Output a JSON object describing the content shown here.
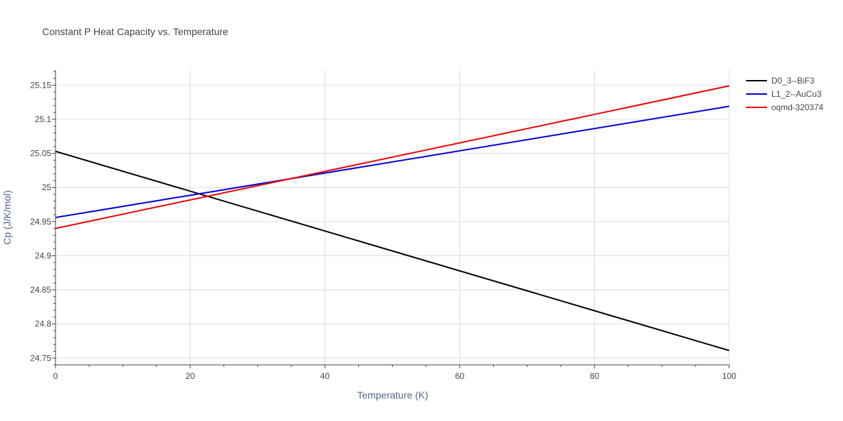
{
  "chart_data": {
    "type": "line",
    "title": "Constant P Heat Capacity vs. Temperature",
    "xlabel": "Temperature (K)",
    "ylabel": "Cp (J/K/mol)",
    "xlim": [
      0,
      100
    ],
    "ylim": [
      24.74,
      25.172
    ],
    "x_ticks": [
      0,
      20,
      40,
      60,
      80,
      100
    ],
    "x_tick_labels": [
      "0",
      "20",
      "40",
      "60",
      "80",
      "100"
    ],
    "y_ticks": [
      24.75,
      24.8,
      24.85,
      24.9,
      24.95,
      25,
      25.05,
      25.1,
      25.15
    ],
    "y_tick_labels": [
      "24.75",
      "24.8",
      "24.85",
      "24.9",
      "24.95",
      "25",
      "25.05",
      "25.1",
      "25.15"
    ],
    "grid": true,
    "legend_position": "top-right",
    "series": [
      {
        "name": "D0_3--BiF3",
        "color": "#000000",
        "x": [
          0,
          100
        ],
        "y": [
          25.053,
          24.761
        ]
      },
      {
        "name": "L1_2--AuCu3",
        "color": "#0000dd",
        "x": [
          0,
          100
        ],
        "y": [
          24.956,
          25.119
        ]
      },
      {
        "name": "oqmd-320374",
        "color": "#ee0000",
        "x": [
          0,
          100
        ],
        "y": [
          24.94,
          25.149
        ]
      }
    ]
  }
}
